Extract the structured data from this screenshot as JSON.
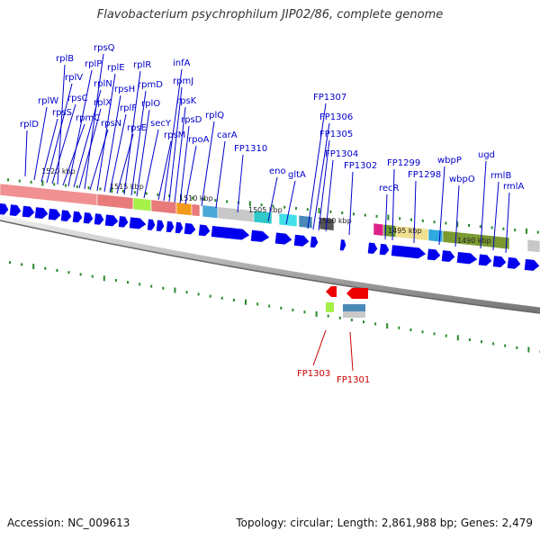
{
  "title": "Flavobacterium psychrophilum JIP02/86, complete genome",
  "footer": {
    "accession": "Accession: NC_009613",
    "genome_info": "Topology: circular; Length: 2,861,988 bp; Genes: 2,479"
  },
  "colors": {
    "forward_gene": "#0000ee",
    "reverse_gene": "#ee0000",
    "label_forward": "#0000cc",
    "label_reverse": "#cc0000",
    "tick": "#2a8a2a",
    "backbone": "#888888"
  },
  "kbp_markers": [
    "1520 kbp",
    "1515 kbp",
    "1510 kbp",
    "1505 kbp",
    "1500 kbp",
    "1495 kbp",
    "1490 kbp"
  ],
  "forward_labels": [
    "rplD",
    "rplW",
    "rpsS",
    "rplV",
    "rpsC",
    "rplB",
    "rpmC",
    "rplP",
    "rplN",
    "rplX",
    "rpsQ",
    "rpsN",
    "rplE",
    "rpsH",
    "rplF",
    "rpsE",
    "rplR",
    "rpmD",
    "rplO",
    "secY",
    "rpsM",
    "infA",
    "rpmJ",
    "rpsK",
    "rpsD",
    "rpoA",
    "rplQ",
    "carA",
    "FP1310",
    "eno",
    "gltA",
    "FP1307",
    "FP1306",
    "FP1305",
    "FP1304",
    "FP1302",
    "recR",
    "FP1299",
    "FP1298",
    "wbpP",
    "wbpO",
    "ugd",
    "rmlB",
    "rmlA"
  ],
  "reverse_labels": [
    "FP1303",
    "FP1301"
  ]
}
